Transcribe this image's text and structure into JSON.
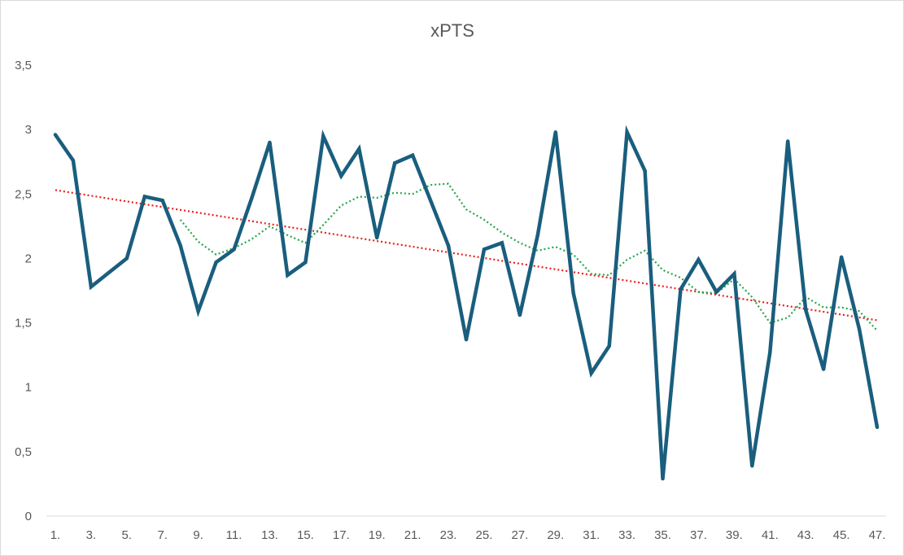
{
  "chart_data": {
    "type": "line",
    "title": "xPTS",
    "xlabel": "",
    "ylabel": "",
    "ylim": [
      0,
      3.5
    ],
    "y_ticks": [
      "0",
      "0,5",
      "1",
      "1,5",
      "2",
      "2,5",
      "3",
      "3,5"
    ],
    "x_tick_labels": [
      "1.",
      "3.",
      "5.",
      "7.",
      "9.",
      "11.",
      "13.",
      "15.",
      "17.",
      "19.",
      "21.",
      "23.",
      "25.",
      "27.",
      "29.",
      "31.",
      "33.",
      "35.",
      "37.",
      "39.",
      "41.",
      "43.",
      "45.",
      "47."
    ],
    "x": [
      1,
      2,
      3,
      4,
      5,
      6,
      7,
      8,
      9,
      10,
      11,
      12,
      13,
      14,
      15,
      16,
      17,
      18,
      19,
      20,
      21,
      22,
      23,
      24,
      25,
      26,
      27,
      28,
      29,
      30,
      31,
      32,
      33,
      34,
      35,
      36,
      37,
      38,
      39,
      40,
      41,
      42,
      43,
      44,
      45,
      46,
      47
    ],
    "grid": false,
    "legend": "none",
    "series": [
      {
        "values": [
          2.96,
          2.76,
          1.78,
          1.89,
          2.0,
          2.48,
          2.45,
          2.1,
          1.59,
          1.97,
          2.07,
          2.47,
          2.9,
          1.87,
          1.97,
          2.95,
          2.64,
          2.85,
          2.16,
          2.74,
          2.8,
          2.45,
          2.1,
          1.37,
          2.07,
          2.12,
          1.56,
          2.18,
          2.98,
          1.73,
          1.11,
          1.32,
          2.98,
          2.68,
          0.29,
          1.76,
          1.99,
          1.74,
          1.88,
          0.39,
          1.27,
          2.91,
          1.6,
          1.14,
          2.01,
          1.45,
          0.69
        ],
        "color": "#1a5e7e",
        "style": "solid"
      },
      {
        "kind": "trendline-linear",
        "values": [
          2.53,
          1.52
        ],
        "x": [
          1,
          47
        ],
        "color": "#e8201a",
        "style": "dotted"
      },
      {
        "kind": "trendline-moving-average",
        "x": [
          8,
          9,
          10,
          11,
          12,
          13,
          14,
          15,
          16,
          17,
          18,
          19,
          20,
          21,
          22,
          23,
          24,
          25,
          26,
          27,
          28,
          29,
          30,
          31,
          32,
          33,
          34,
          35,
          36,
          37,
          38,
          39,
          40,
          41,
          42,
          43,
          44,
          45,
          46,
          47
        ],
        "values": [
          2.3,
          2.13,
          2.03,
          2.08,
          2.15,
          2.25,
          2.18,
          2.12,
          2.26,
          2.41,
          2.48,
          2.47,
          2.51,
          2.5,
          2.57,
          2.58,
          2.38,
          2.3,
          2.2,
          2.12,
          2.06,
          2.09,
          2.03,
          1.88,
          1.87,
          1.99,
          2.06,
          1.91,
          1.85,
          1.74,
          1.73,
          1.84,
          1.7,
          1.5,
          1.54,
          1.7,
          1.62,
          1.62,
          1.59,
          1.44
        ],
        "color": "#22a74a",
        "style": "dotted"
      }
    ]
  }
}
